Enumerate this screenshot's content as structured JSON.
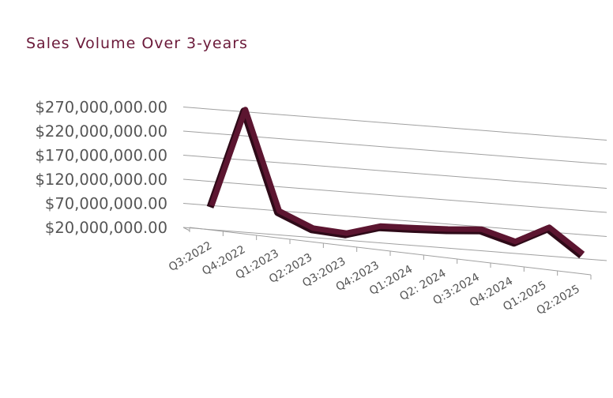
{
  "chart_data": {
    "type": "line",
    "title": "Sales Volume Over 3-years",
    "categories": [
      "Q3:2022",
      "Q4:2022",
      "Q1:2023",
      "Q2:2023",
      "Q3:2023",
      "Q4:2023",
      "Q1:2024",
      "Q2: 2024",
      "Q:3:2024",
      "Q4:2024",
      "Q1:2025",
      "Q2:2025"
    ],
    "y_tick_labels": [
      "$270,000,000.00",
      "$220,000,000.00",
      "$170,000,000.00",
      "$120,000,000.00",
      "$70,000,000.00",
      "$20,000,000.00"
    ],
    "series": [
      {
        "values": [
          60000000,
          265000000,
          60000000,
          30000000,
          25000000,
          45000000,
          47000000,
          50000000,
          55000000,
          35000000,
          70000000,
          20000000
        ]
      }
    ],
    "ylim": [
      20000000,
      270000000
    ],
    "xlabel": "",
    "ylabel": "",
    "grid": true,
    "legend": "none",
    "style": "3d",
    "line_color": "#5c1530",
    "line_dark_color": "#2e0a18",
    "grid_color": "#a0a0a0"
  }
}
